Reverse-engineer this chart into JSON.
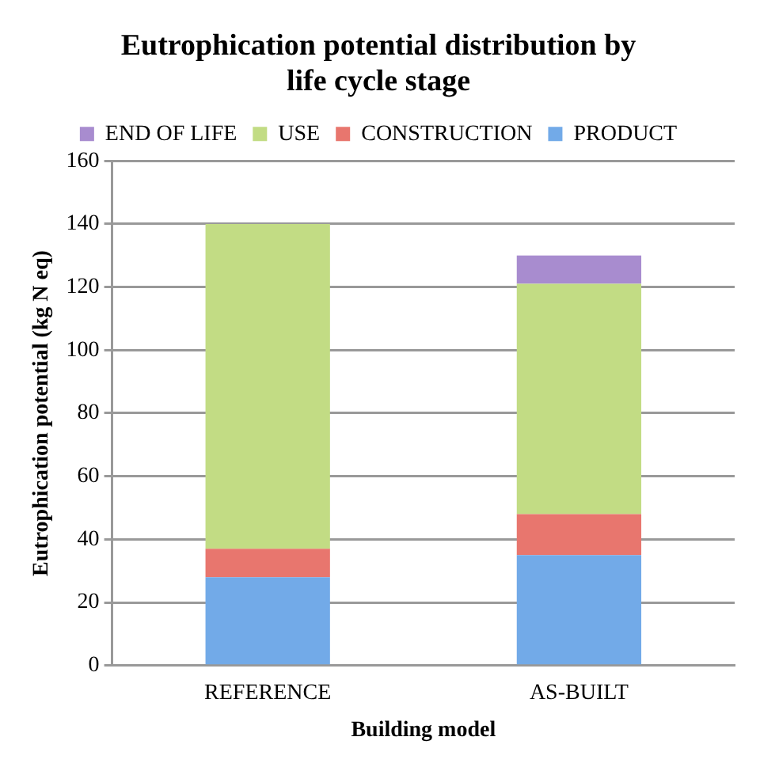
{
  "chart_data": {
    "type": "bar",
    "title": "Eutrophication potential distribution by life cycle stage",
    "xlabel": "Building model",
    "ylabel": "Eutrophication potential (kg N eq)",
    "categories": [
      "REFERENCE",
      "AS-BUILT"
    ],
    "stacked": true,
    "series": [
      {
        "name": "PRODUCT",
        "color": "#72aae8",
        "values": [
          28,
          35
        ]
      },
      {
        "name": "CONSTRUCTION",
        "color": "#e8766e",
        "values": [
          9,
          13
        ]
      },
      {
        "name": "USE",
        "color": "#c2dc84",
        "values": [
          103,
          73
        ]
      },
      {
        "name": "END OF LIFE",
        "color": "#a88ccf",
        "values": [
          0,
          9
        ]
      }
    ],
    "ylim": [
      0,
      160
    ],
    "yticks": [
      0,
      20,
      40,
      60,
      80,
      100,
      120,
      140,
      160
    ],
    "grid": "y",
    "legend": "top"
  }
}
